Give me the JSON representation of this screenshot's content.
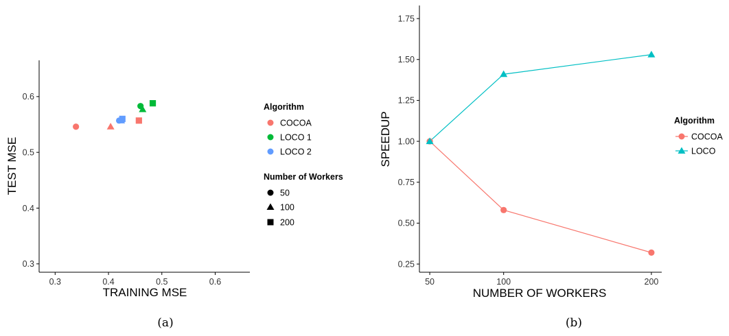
{
  "colors": {
    "cocoa": "#F8766D",
    "loco1": "#00BA38",
    "loco2": "#619CFF",
    "loco": "#00BFC4",
    "axis": "#000000",
    "tick_text": "#333333"
  },
  "chart_data": [
    {
      "type": "scatter",
      "caption": "(a)",
      "xlabel": "TRAINING MSE",
      "ylabel": "TEST MSE",
      "xlim": [
        0.27,
        0.665
      ],
      "ylim": [
        0.285,
        0.665
      ],
      "xticks": [
        0.3,
        0.4,
        0.5,
        0.6
      ],
      "yticks": [
        0.3,
        0.4,
        0.5,
        0.6
      ],
      "grid": false,
      "legend_placement": "right",
      "legends": [
        {
          "title": "Algorithm",
          "entries": [
            {
              "label": "COCOA",
              "color": "#F8766D"
            },
            {
              "label": "LOCO 1",
              "color": "#00BA38"
            },
            {
              "label": "LOCO 2",
              "color": "#619CFF"
            }
          ]
        },
        {
          "title": "Number of Workers",
          "entries": [
            {
              "label": "50",
              "shape": "circle"
            },
            {
              "label": "100",
              "shape": "triangle"
            },
            {
              "label": "200",
              "shape": "square"
            }
          ]
        }
      ],
      "points": [
        {
          "algorithm": "COCOA",
          "workers": 50,
          "x": 0.339,
          "y": 0.546
        },
        {
          "algorithm": "COCOA",
          "workers": 100,
          "x": 0.404,
          "y": 0.546
        },
        {
          "algorithm": "COCOA",
          "workers": 200,
          "x": 0.457,
          "y": 0.557
        },
        {
          "algorithm": "LOCO 1",
          "workers": 50,
          "x": 0.46,
          "y": 0.583
        },
        {
          "algorithm": "LOCO 1",
          "workers": 100,
          "x": 0.464,
          "y": 0.577
        },
        {
          "algorithm": "LOCO 1",
          "workers": 200,
          "x": 0.483,
          "y": 0.588
        },
        {
          "algorithm": "LOCO 2",
          "workers": 50,
          "x": 0.42,
          "y": 0.557
        },
        {
          "algorithm": "LOCO 2",
          "workers": 100,
          "x": 0.424,
          "y": 0.557
        },
        {
          "algorithm": "LOCO 2",
          "workers": 200,
          "x": 0.426,
          "y": 0.56
        }
      ]
    },
    {
      "type": "line",
      "caption": "(b)",
      "xlabel": "NUMBER OF WORKERS",
      "ylabel": "SPEEDUP",
      "xlim": [
        43,
        207
      ],
      "ylim": [
        0.2,
        1.83
      ],
      "xticks": [
        50,
        100,
        200
      ],
      "yticks": [
        0.25,
        0.5,
        0.75,
        1.0,
        1.25,
        1.5,
        1.75
      ],
      "ytick_labels": [
        "0.25",
        "0.50",
        "0.75",
        "1.00",
        "1.25",
        "1.50",
        "1.75"
      ],
      "grid": false,
      "legend_placement": "right",
      "legend_title": "Algorithm",
      "x": [
        50,
        100,
        200
      ],
      "series": [
        {
          "name": "COCOA",
          "color": "#F8766D",
          "marker": "circle",
          "values": [
            1.0,
            0.58,
            0.32
          ]
        },
        {
          "name": "LOCO",
          "color": "#00BFC4",
          "marker": "triangle",
          "values": [
            1.0,
            1.41,
            1.53
          ]
        }
      ]
    }
  ]
}
